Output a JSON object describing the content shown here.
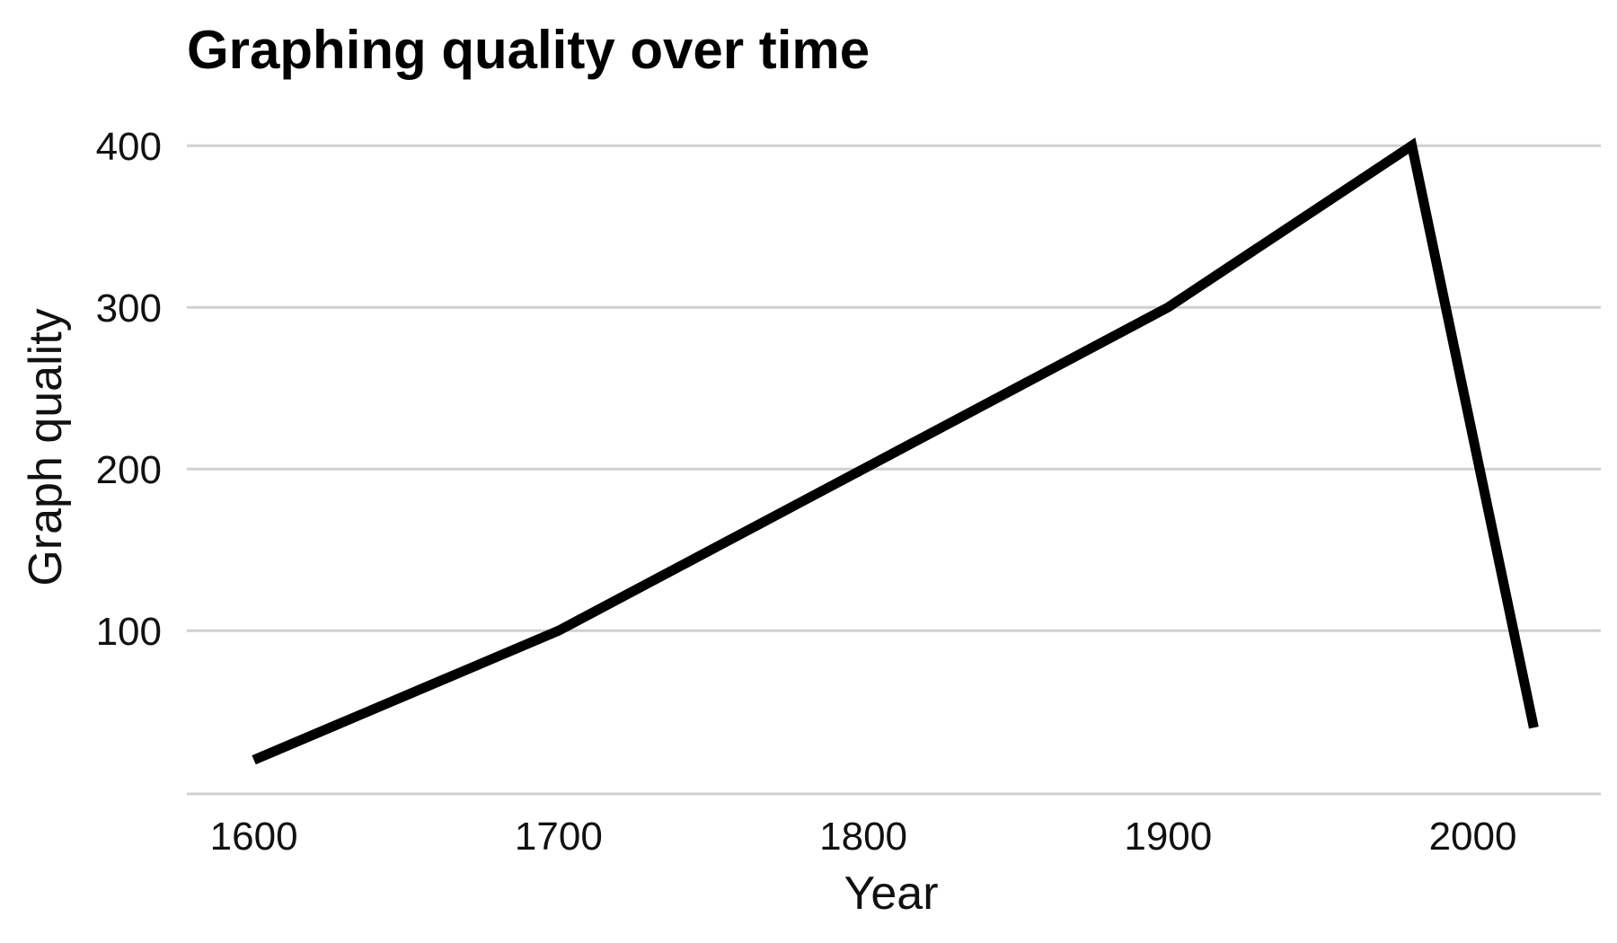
{
  "chart_data": {
    "type": "line",
    "title": "Graphing quality over time",
    "xlabel": "Year",
    "ylabel": "Graph quality",
    "xlim": [
      1578,
      2042
    ],
    "ylim": [
      -1,
      404
    ],
    "xticks": [
      1600,
      1700,
      1800,
      1900,
      2000
    ],
    "yticks": [
      100,
      200,
      300,
      400
    ],
    "grid": "horizontal",
    "legend": "none",
    "series": [
      {
        "x": [
          1600,
          1700,
          1900,
          1980,
          2020
        ],
        "y": [
          20,
          100,
          300,
          400,
          40
        ],
        "color": "#000000"
      }
    ]
  }
}
